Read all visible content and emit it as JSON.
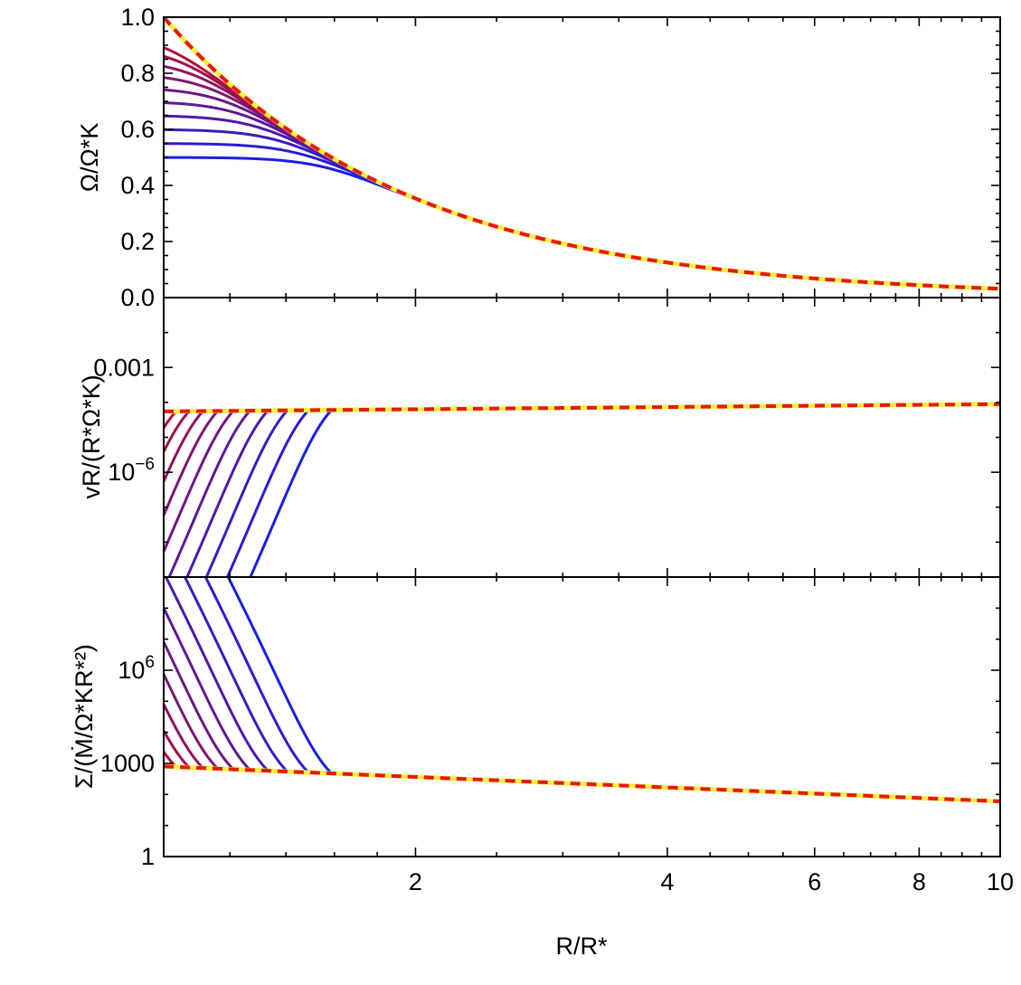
{
  "chart_data": [
    {
      "type": "line",
      "panel": "top",
      "ylabel": "Ω/Ω*K",
      "ylabel_parts": [
        [
          "Ω/Ω",
          ""
        ],
        [
          "*",
          "sub"
        ],
        [
          "K",
          "sub-italic"
        ]
      ],
      "xscale": "log",
      "yscale": "linear",
      "xlim": [
        1,
        10
      ],
      "ylim": [
        0,
        1
      ],
      "yticks": [
        0,
        0.2,
        0.4,
        0.6,
        0.8,
        1.0
      ],
      "ytick_labels": [
        "0.0",
        "0.2",
        "0.4",
        "0.6",
        "0.8",
        "1.0"
      ],
      "description": "Family of curves: each flat at Omega0 near R=1, merging into the Keplerian profile R^-1.5 by R≈1.6. Reference curve (red dashed on yellow) is R^-1.5.",
      "inner_values": [
        0.5,
        0.55,
        0.6,
        0.65,
        0.7,
        0.75,
        0.8,
        0.85,
        0.9,
        0.95
      ],
      "reference": "R^-1.5"
    },
    {
      "type": "line",
      "panel": "middle",
      "ylabel": "vR/(R*Ω*K)",
      "xscale": "log",
      "yscale": "log",
      "xlim": [
        1,
        10
      ],
      "ylim": [
        1e-09,
        0.1
      ],
      "yticks": [
        0.001,
        1e-06
      ],
      "ytick_labels": [
        "0.001",
        "10^-6"
      ],
      "reference_start": 5.5e-05,
      "reference_end": 9e-05,
      "description": "Curves rise steeply from below 1e-8 near R=1 to the reference value; the reference (red dashed on yellow) is nearly flat at ~5e-5 to 9e-5."
    },
    {
      "type": "line",
      "panel": "bottom",
      "ylabel": "Σ/(Ṁ/Ω*KR*²)",
      "xscale": "log",
      "yscale": "log",
      "xlim": [
        1,
        10
      ],
      "ylim": [
        1,
        1000000000.0
      ],
      "yticks": [
        1,
        1000,
        1000000
      ],
      "ytick_labels": [
        "1",
        "1000",
        "10^6"
      ],
      "reference_start": 800,
      "reference_end": 60,
      "description": "Curves start high near R=1 and fall to the reference line; reference (red dashed on yellow) declines from ~800 at R=1 to ~60 at R=10."
    }
  ],
  "xaxis": {
    "label": "R/R*",
    "ticks": [
      2,
      4,
      6,
      8,
      10
    ],
    "tick_labels": [
      "2",
      "4",
      "6",
      "8",
      "10"
    ],
    "minor_ticks": [
      1.2,
      1.4,
      1.6,
      1.8,
      2.5,
      3,
      3.5,
      4.5,
      5,
      5.5,
      6.5,
      7,
      7.5,
      8.5,
      9,
      9.5
    ]
  },
  "colors": {
    "curve_start": "#b0103a",
    "curve_end": "#1a1ee6",
    "reference_under": "#f2f23a",
    "reference_dash": "#e8161c",
    "frame": "#000000"
  }
}
